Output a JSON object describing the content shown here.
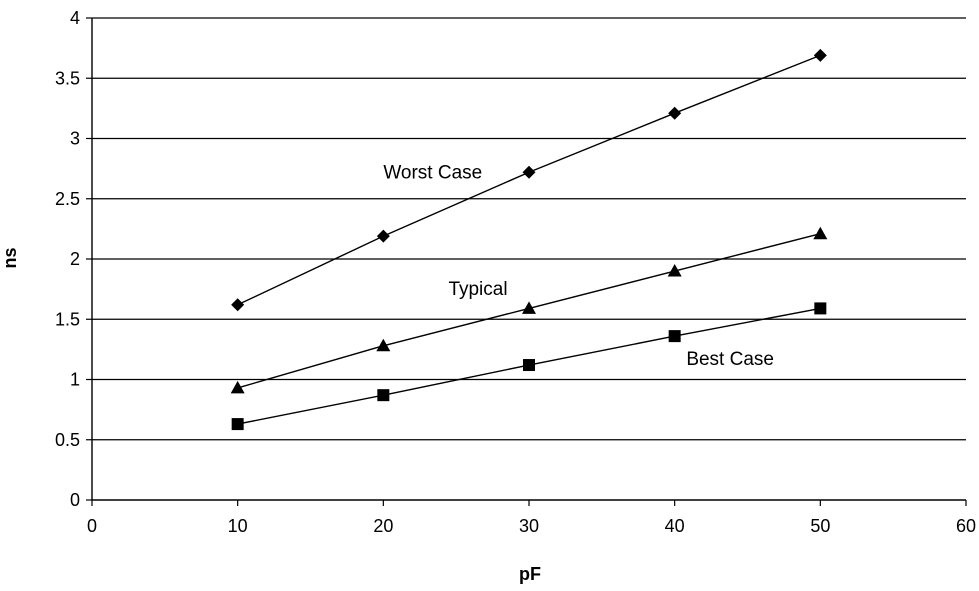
{
  "chart_data": {
    "type": "scatter",
    "title": "",
    "xlabel": "pF",
    "ylabel": "ns",
    "xlim": [
      0,
      60
    ],
    "ylim": [
      0,
      4
    ],
    "x_ticks": [
      "0",
      "10",
      "20",
      "30",
      "40",
      "50",
      "60"
    ],
    "y_ticks": [
      "0",
      "0.5",
      "1",
      "1.5",
      "2",
      "2.5",
      "3",
      "3.5",
      "4"
    ],
    "grid": "horizontal",
    "series": [
      {
        "name": "Worst Case",
        "marker": "diamond",
        "x": [
          10,
          20,
          30,
          40,
          50
        ],
        "y": [
          1.62,
          2.19,
          2.72,
          3.21,
          3.69
        ]
      },
      {
        "name": "Typical",
        "marker": "triangle",
        "x": [
          10,
          20,
          30,
          40,
          50
        ],
        "y": [
          0.93,
          1.28,
          1.59,
          1.9,
          2.21
        ]
      },
      {
        "name": "Best Case",
        "marker": "square",
        "x": [
          10,
          20,
          30,
          40,
          50
        ],
        "y": [
          0.63,
          0.87,
          1.12,
          1.36,
          1.59
        ]
      }
    ]
  }
}
